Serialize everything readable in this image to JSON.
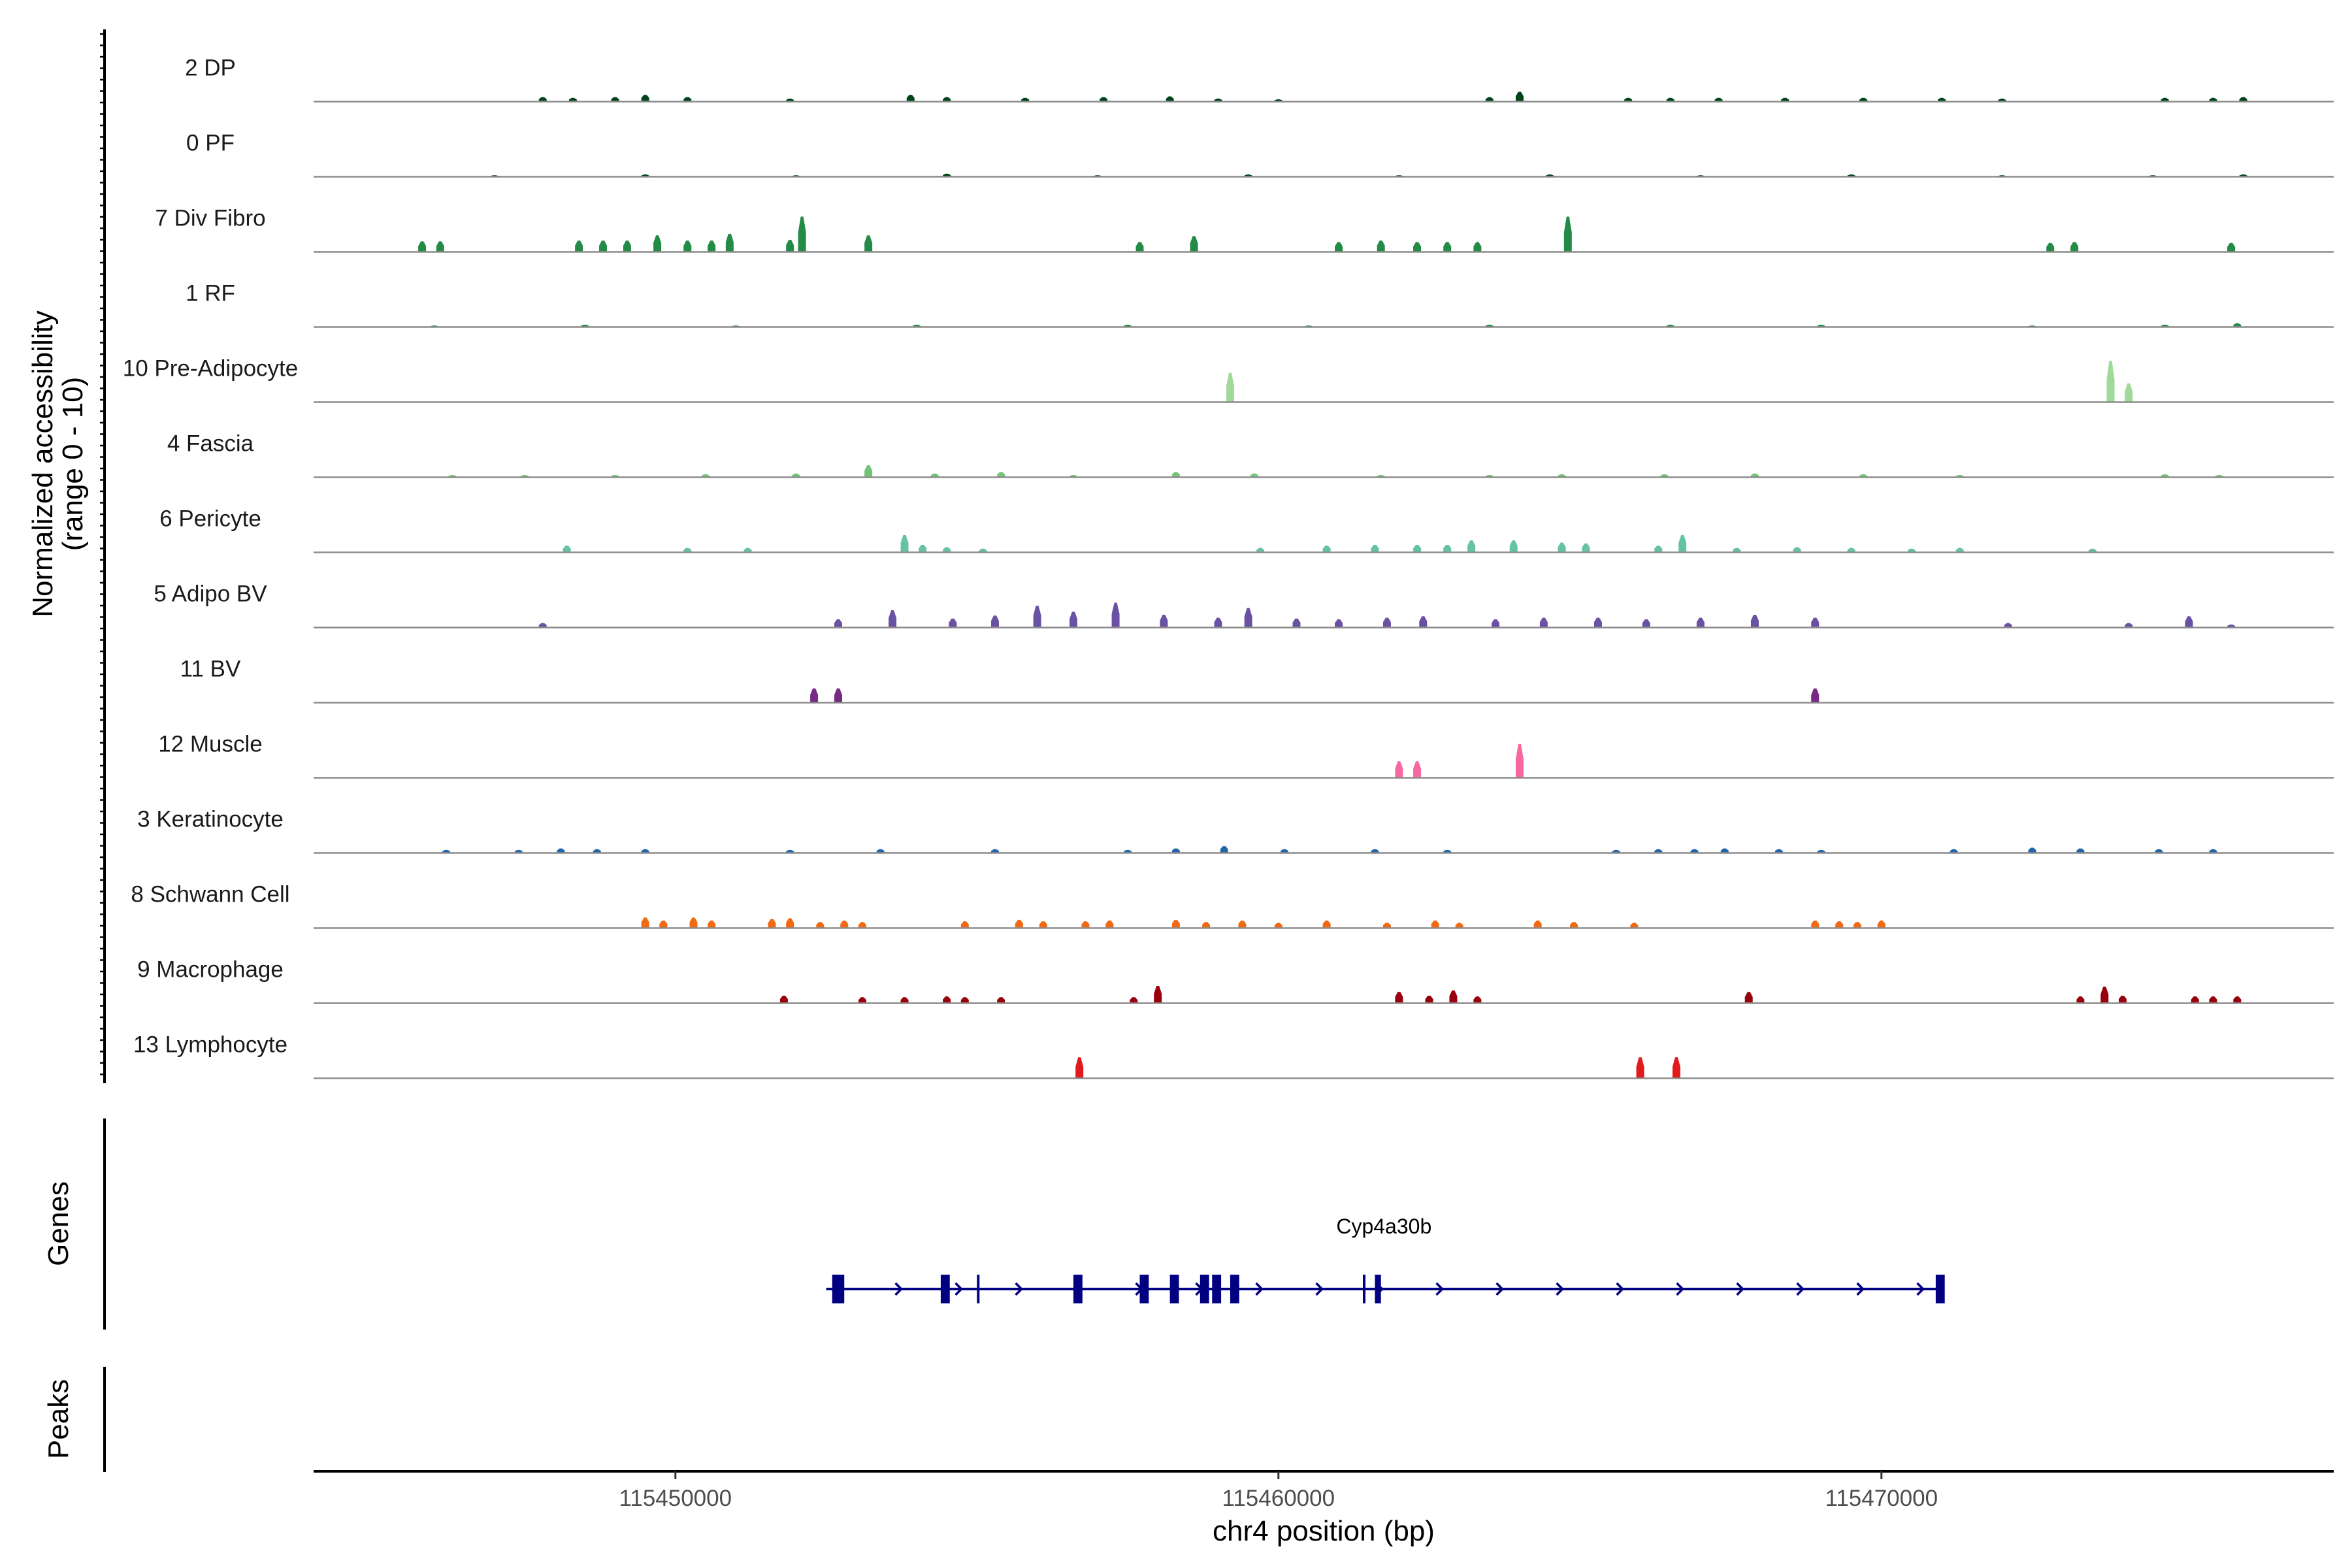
{
  "chart_data": {
    "type": "coverage",
    "ylabel_line1": "Normalized accessibility",
    "ylabel_line2": "(range 0 - 10)",
    "xlabel": "chr4 position (bp)",
    "xlim": [
      115444000,
      115477500
    ],
    "xticks": [
      {
        "value": 115450000,
        "label": "115450000"
      },
      {
        "value": 115460000,
        "label": "115460000"
      },
      {
        "value": 115470000,
        "label": "115470000"
      }
    ],
    "ylim": [
      0,
      10
    ],
    "tracks": [
      {
        "label": "2 DP",
        "color": "#00441b",
        "peaks": [
          [
            115447800,
            0.6
          ],
          [
            115448300,
            0.5
          ],
          [
            115449000,
            0.6
          ],
          [
            115449500,
            0.9
          ],
          [
            115450200,
            0.6
          ],
          [
            115451900,
            0.4
          ],
          [
            115453900,
            0.9
          ],
          [
            115454500,
            0.6
          ],
          [
            115455800,
            0.5
          ],
          [
            115457100,
            0.6
          ],
          [
            115458200,
            0.7
          ],
          [
            115459000,
            0.4
          ],
          [
            115460000,
            0.3
          ],
          [
            115463500,
            0.6
          ],
          [
            115464000,
            1.3
          ],
          [
            115465800,
            0.5
          ],
          [
            115466500,
            0.5
          ],
          [
            115467300,
            0.5
          ],
          [
            115468400,
            0.5
          ],
          [
            115469700,
            0.5
          ],
          [
            115471000,
            0.5
          ],
          [
            115472000,
            0.4
          ],
          [
            115474700,
            0.5
          ],
          [
            115475500,
            0.5
          ],
          [
            115476000,
            0.6
          ]
        ]
      },
      {
        "label": "0 PF",
        "color": "#00441b",
        "peaks": [
          [
            115447000,
            0.2
          ],
          [
            115449500,
            0.3
          ],
          [
            115452000,
            0.2
          ],
          [
            115454500,
            0.4
          ],
          [
            115457000,
            0.2
          ],
          [
            115459500,
            0.3
          ],
          [
            115462000,
            0.2
          ],
          [
            115464500,
            0.3
          ],
          [
            115467000,
            0.2
          ],
          [
            115469500,
            0.3
          ],
          [
            115472000,
            0.2
          ],
          [
            115474500,
            0.2
          ],
          [
            115476000,
            0.3
          ]
        ]
      },
      {
        "label": "7 Div Fibro",
        "color": "#238b45",
        "peaks": [
          [
            115445800,
            1.4
          ],
          [
            115446100,
            1.4
          ],
          [
            115448400,
            1.5
          ],
          [
            115448800,
            1.5
          ],
          [
            115449200,
            1.5
          ],
          [
            115449700,
            2.2
          ],
          [
            115450200,
            1.5
          ],
          [
            115450600,
            1.5
          ],
          [
            115450900,
            2.4
          ],
          [
            115451900,
            1.6
          ],
          [
            115452100,
            4.7
          ],
          [
            115453200,
            2.2
          ],
          [
            115457700,
            1.3
          ],
          [
            115458600,
            2.1
          ],
          [
            115461000,
            1.3
          ],
          [
            115461700,
            1.5
          ],
          [
            115462300,
            1.3
          ],
          [
            115462800,
            1.3
          ],
          [
            115463300,
            1.3
          ],
          [
            115464800,
            4.7
          ],
          [
            115472800,
            1.2
          ],
          [
            115473200,
            1.3
          ],
          [
            115475800,
            1.2
          ]
        ]
      },
      {
        "label": "1 RF",
        "color": "#238b45",
        "peaks": [
          [
            115446000,
            0.2
          ],
          [
            115448500,
            0.3
          ],
          [
            115451000,
            0.2
          ],
          [
            115454000,
            0.3
          ],
          [
            115457500,
            0.3
          ],
          [
            115460500,
            0.2
          ],
          [
            115463500,
            0.3
          ],
          [
            115466500,
            0.3
          ],
          [
            115469000,
            0.3
          ],
          [
            115472500,
            0.2
          ],
          [
            115474700,
            0.3
          ],
          [
            115475900,
            0.5
          ]
        ]
      },
      {
        "label": "10 Pre-Adipocyte",
        "color": "#a1d99b",
        "peaks": [
          [
            115459200,
            3.9
          ],
          [
            115473800,
            5.5
          ],
          [
            115474100,
            2.5
          ]
        ]
      },
      {
        "label": "4 Fascia",
        "color": "#74c476",
        "peaks": [
          [
            115446300,
            0.3
          ],
          [
            115447500,
            0.3
          ],
          [
            115449000,
            0.3
          ],
          [
            115450500,
            0.4
          ],
          [
            115452000,
            0.5
          ],
          [
            115453200,
            1.6
          ],
          [
            115454300,
            0.5
          ],
          [
            115455400,
            0.7
          ],
          [
            115456600,
            0.3
          ],
          [
            115458300,
            0.7
          ],
          [
            115459600,
            0.5
          ],
          [
            115461700,
            0.3
          ],
          [
            115463500,
            0.3
          ],
          [
            115464700,
            0.4
          ],
          [
            115466400,
            0.4
          ],
          [
            115467900,
            0.5
          ],
          [
            115469700,
            0.4
          ],
          [
            115471300,
            0.3
          ],
          [
            115474700,
            0.4
          ],
          [
            115475600,
            0.3
          ]
        ]
      },
      {
        "label": "6 Pericyte",
        "color": "#66c2a4",
        "peaks": [
          [
            115448200,
            0.9
          ],
          [
            115450200,
            0.6
          ],
          [
            115451200,
            0.6
          ],
          [
            115453800,
            2.3
          ],
          [
            115454100,
            1.0
          ],
          [
            115454500,
            0.7
          ],
          [
            115455100,
            0.5
          ],
          [
            115459700,
            0.6
          ],
          [
            115460800,
            0.9
          ],
          [
            115461600,
            1.0
          ],
          [
            115462300,
            1.0
          ],
          [
            115462800,
            1.0
          ],
          [
            115463200,
            1.6
          ],
          [
            115463900,
            1.6
          ],
          [
            115464700,
            1.3
          ],
          [
            115465100,
            1.2
          ],
          [
            115466300,
            0.9
          ],
          [
            115466700,
            2.3
          ],
          [
            115467600,
            0.6
          ],
          [
            115468600,
            0.7
          ],
          [
            115469500,
            0.6
          ],
          [
            115470500,
            0.5
          ],
          [
            115471300,
            0.6
          ],
          [
            115473500,
            0.5
          ]
        ]
      },
      {
        "label": "5 Adipo BV",
        "color": "#6a51a3",
        "peaks": [
          [
            115447800,
            0.6
          ],
          [
            115452700,
            1.1
          ],
          [
            115453600,
            2.3
          ],
          [
            115454600,
            1.2
          ],
          [
            115455300,
            1.6
          ],
          [
            115456000,
            2.9
          ],
          [
            115456600,
            2.1
          ],
          [
            115457300,
            3.3
          ],
          [
            115458100,
            1.7
          ],
          [
            115459000,
            1.3
          ],
          [
            115459500,
            2.6
          ],
          [
            115460300,
            1.2
          ],
          [
            115461000,
            1.1
          ],
          [
            115461800,
            1.3
          ],
          [
            115462400,
            1.5
          ],
          [
            115463600,
            1.1
          ],
          [
            115464400,
            1.3
          ],
          [
            115465300,
            1.3
          ],
          [
            115466100,
            1.1
          ],
          [
            115467000,
            1.3
          ],
          [
            115467900,
            1.7
          ],
          [
            115468900,
            1.3
          ],
          [
            115472100,
            0.6
          ],
          [
            115474100,
            0.6
          ],
          [
            115475100,
            1.5
          ],
          [
            115475800,
            0.4
          ]
        ]
      },
      {
        "label": "11 BV",
        "color": "#762a83",
        "peaks": [
          [
            115452300,
            1.9
          ],
          [
            115452700,
            1.9
          ],
          [
            115468900,
            1.9
          ]
        ]
      },
      {
        "label": "12 Muscle",
        "color": "#f768a1",
        "peaks": [
          [
            115462000,
            2.2
          ],
          [
            115462300,
            2.2
          ],
          [
            115464000,
            4.5
          ]
        ]
      },
      {
        "label": "3 Keratinocyte",
        "color": "#2166ac",
        "peaks": [
          [
            115446200,
            0.4
          ],
          [
            115447400,
            0.4
          ],
          [
            115448100,
            0.6
          ],
          [
            115448700,
            0.5
          ],
          [
            115449500,
            0.5
          ],
          [
            115451900,
            0.4
          ],
          [
            115453400,
            0.5
          ],
          [
            115455300,
            0.5
          ],
          [
            115457500,
            0.4
          ],
          [
            115458300,
            0.6
          ],
          [
            115459100,
            0.9
          ],
          [
            115460100,
            0.5
          ],
          [
            115461600,
            0.5
          ],
          [
            115462800,
            0.4
          ],
          [
            115465600,
            0.4
          ],
          [
            115466300,
            0.5
          ],
          [
            115466900,
            0.5
          ],
          [
            115467400,
            0.6
          ],
          [
            115468300,
            0.5
          ],
          [
            115469000,
            0.4
          ],
          [
            115471200,
            0.5
          ],
          [
            115472500,
            0.7
          ],
          [
            115473300,
            0.6
          ],
          [
            115474600,
            0.5
          ],
          [
            115475500,
            0.5
          ]
        ]
      },
      {
        "label": "8 Schwann Cell",
        "color": "#f16913",
        "peaks": [
          [
            115449500,
            1.4
          ],
          [
            115449800,
            1.0
          ],
          [
            115450300,
            1.4
          ],
          [
            115450600,
            1.0
          ],
          [
            115451600,
            1.2
          ],
          [
            115451900,
            1.3
          ],
          [
            115452400,
            0.8
          ],
          [
            115452800,
            1.0
          ],
          [
            115453100,
            0.8
          ],
          [
            115454800,
            0.9
          ],
          [
            115455700,
            1.1
          ],
          [
            115456100,
            0.9
          ],
          [
            115456800,
            0.9
          ],
          [
            115457200,
            1.0
          ],
          [
            115458300,
            1.1
          ],
          [
            115458800,
            0.8
          ],
          [
            115459400,
            1.0
          ],
          [
            115460000,
            0.7
          ],
          [
            115460800,
            1.0
          ],
          [
            115461800,
            0.7
          ],
          [
            115462600,
            1.0
          ],
          [
            115463000,
            0.7
          ],
          [
            115464300,
            1.0
          ],
          [
            115464900,
            0.8
          ],
          [
            115465900,
            0.7
          ],
          [
            115468900,
            1.0
          ],
          [
            115469300,
            0.9
          ],
          [
            115469600,
            0.8
          ],
          [
            115470000,
            1.0
          ]
        ]
      },
      {
        "label": "9 Macrophage",
        "color": "#99000d",
        "peaks": [
          [
            115451800,
            1.0
          ],
          [
            115453100,
            0.8
          ],
          [
            115453800,
            0.8
          ],
          [
            115454500,
            0.9
          ],
          [
            115454800,
            0.8
          ],
          [
            115455400,
            0.8
          ],
          [
            115457600,
            0.8
          ],
          [
            115458000,
            2.3
          ],
          [
            115462000,
            1.5
          ],
          [
            115462500,
            1.0
          ],
          [
            115462900,
            1.7
          ],
          [
            115463300,
            0.9
          ],
          [
            115467800,
            1.5
          ],
          [
            115473300,
            0.9
          ],
          [
            115473700,
            2.2
          ],
          [
            115474000,
            1.0
          ],
          [
            115475200,
            0.9
          ],
          [
            115475500,
            0.9
          ],
          [
            115475900,
            0.9
          ]
        ]
      },
      {
        "label": "13 Lymphocyte",
        "color": "#e31a1c",
        "peaks": [
          [
            115456700,
            2.8
          ],
          [
            115466000,
            2.8
          ],
          [
            115466600,
            2.8
          ]
        ]
      }
    ],
    "genes": [
      {
        "name": "Cyp4a30b",
        "strand": "+",
        "start": 115452500,
        "end": 115471000,
        "exons": [
          [
            115452600,
            115452800
          ],
          [
            115454400,
            115454550
          ],
          [
            115455000,
            115455040
          ],
          [
            115456600,
            115456750
          ],
          [
            115457700,
            115457850
          ],
          [
            115458200,
            115458350
          ],
          [
            115458700,
            115458850
          ],
          [
            115458900,
            115459050
          ],
          [
            115459200,
            115459350
          ],
          [
            115461400,
            115461440
          ],
          [
            115461600,
            115461700
          ],
          [
            115470900,
            115471050
          ]
        ]
      }
    ],
    "peaks_track": []
  },
  "panels": {
    "genes_title": "Genes",
    "peaks_title": "Peaks"
  }
}
